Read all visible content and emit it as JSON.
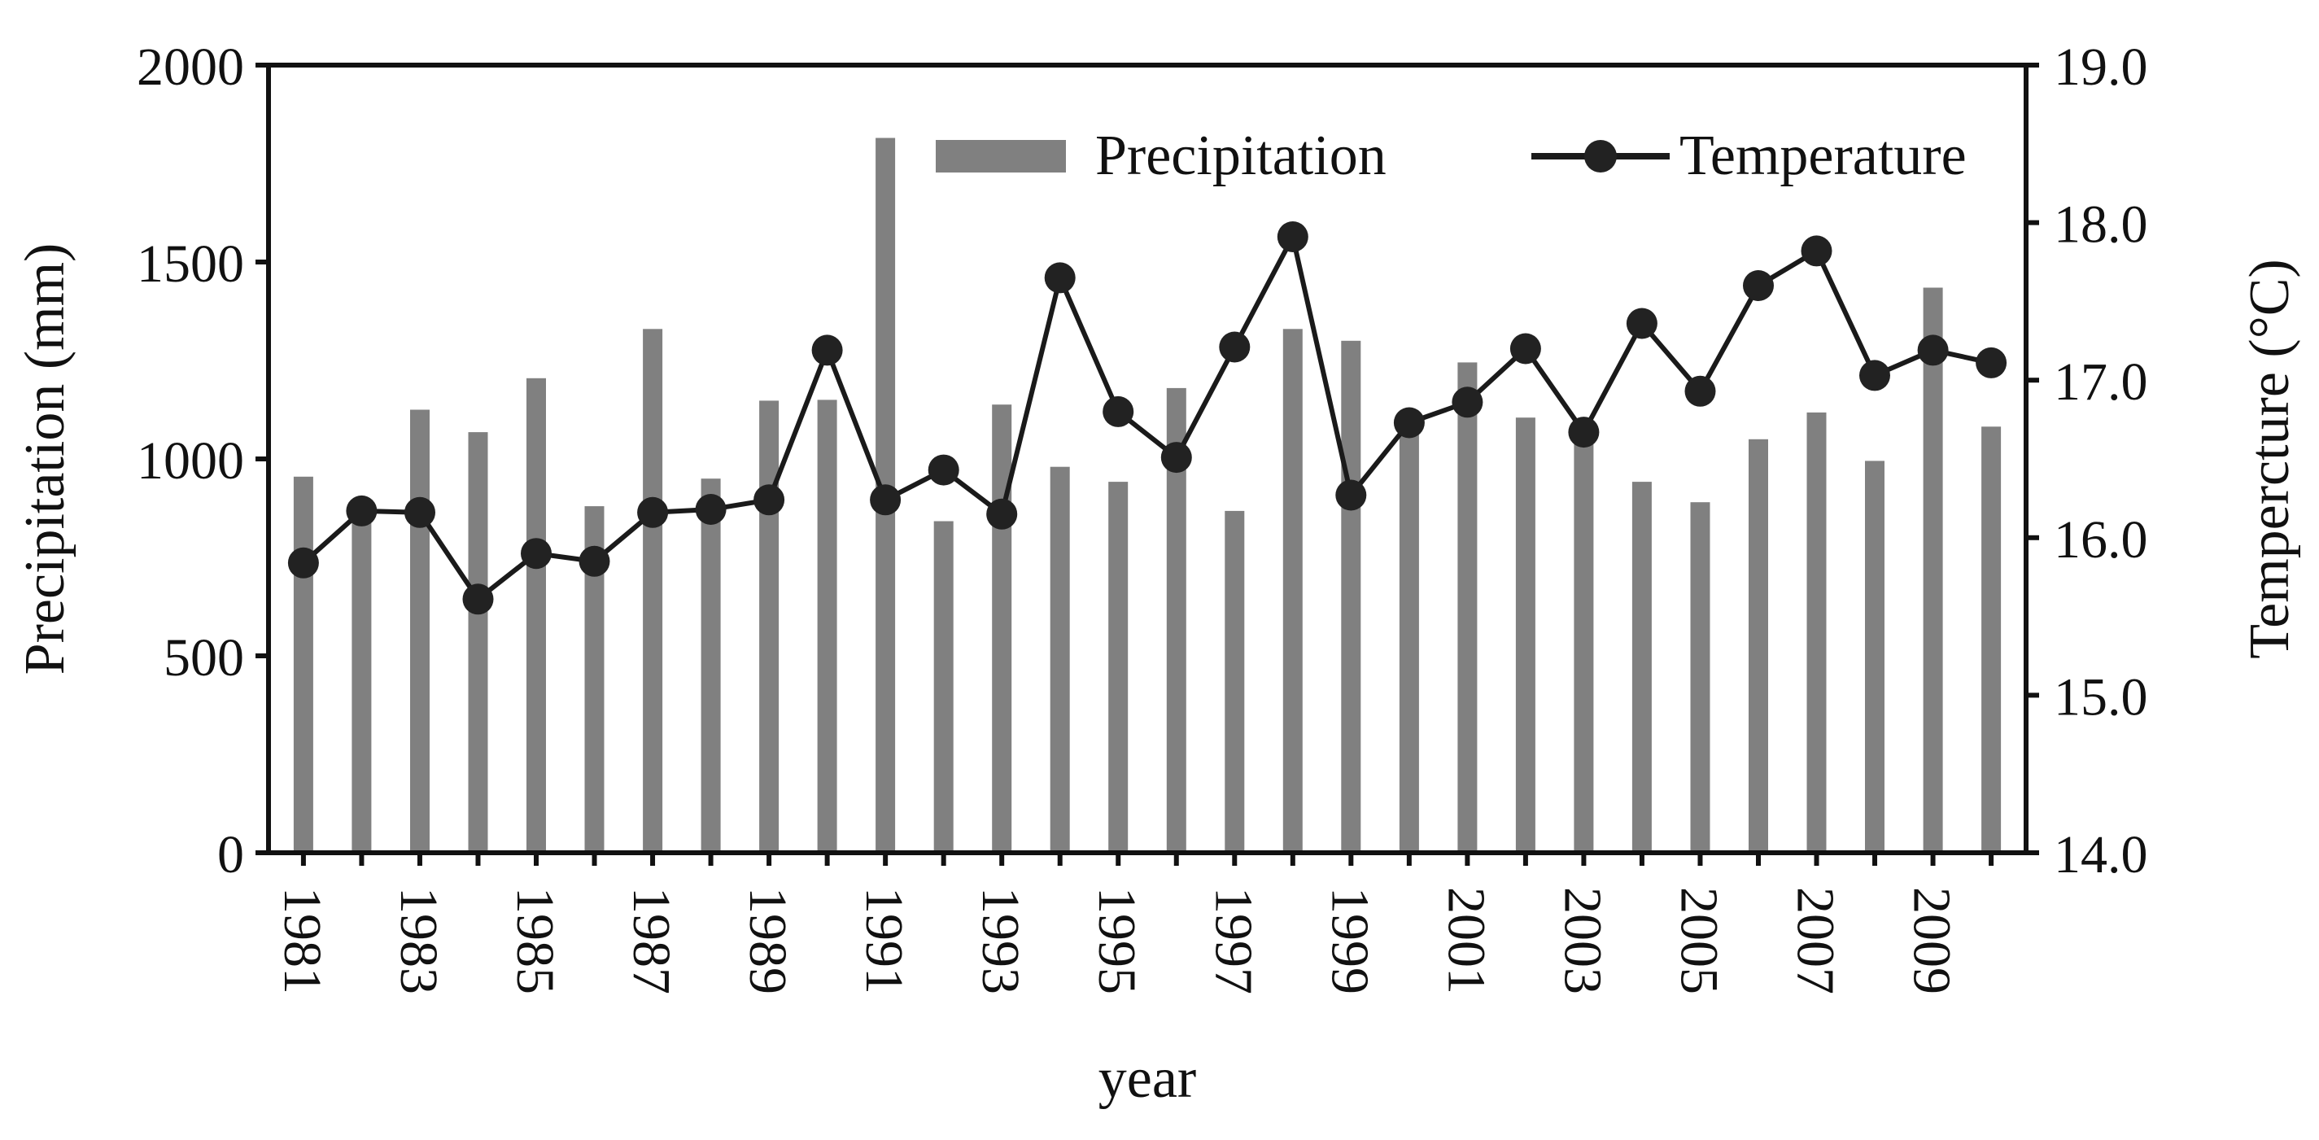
{
  "chart_data": {
    "type": "bar+line",
    "title": "",
    "xlabel": "year",
    "ylabel_left": "Precipitation (mm)",
    "ylabel_right": "Tempercture (°C)",
    "ylim_left": [
      0,
      2000
    ],
    "ylim_right": [
      14.0,
      19.0
    ],
    "left_ticks": [
      "0",
      "500",
      "1000",
      "1500",
      "2000"
    ],
    "right_ticks": [
      "14.0",
      "15.0",
      "16.0",
      "17.0",
      "18.0",
      "19.0"
    ],
    "x_tick_labels": [
      "1981",
      "1983",
      "1985",
      "1987",
      "1989",
      "1991",
      "1993",
      "1995",
      "1997",
      "1999",
      "2001",
      "2003",
      "2005",
      "2007",
      "2009"
    ],
    "categories": [
      1981,
      1982,
      1983,
      1984,
      1985,
      1986,
      1987,
      1988,
      1989,
      1990,
      1991,
      1992,
      1993,
      1994,
      1995,
      1996,
      1997,
      1998,
      1999,
      2000,
      2001,
      2002,
      2003,
      2004,
      2005,
      2006,
      2007,
      2008,
      2009,
      2010
    ],
    "series": [
      {
        "name": "Precipitation",
        "type": "bar",
        "axis": "left",
        "color": "#808080",
        "values": [
          955,
          870,
          1125,
          1068,
          1205,
          880,
          1330,
          950,
          1148,
          1150,
          1815,
          842,
          1138,
          980,
          942,
          1180,
          868,
          1330,
          1300,
          1110,
          1245,
          1105,
          1058,
          942,
          890,
          1050,
          1118,
          995,
          1435,
          1082
        ]
      },
      {
        "name": "Temperature",
        "type": "line",
        "axis": "right",
        "color": "#1a1a1a",
        "values": [
          15.84,
          16.17,
          16.16,
          15.61,
          15.9,
          15.85,
          16.16,
          16.18,
          16.24,
          17.19,
          16.24,
          16.43,
          16.15,
          17.65,
          16.8,
          16.51,
          17.21,
          17.91,
          16.27,
          16.73,
          16.86,
          17.2,
          16.67,
          17.36,
          16.93,
          17.6,
          17.82,
          17.03,
          17.19,
          17.11
        ]
      }
    ],
    "legend": {
      "position": "top-right",
      "precipitation_label": "Precipitation",
      "temperature_label": "Temperature"
    },
    "grid": false
  }
}
